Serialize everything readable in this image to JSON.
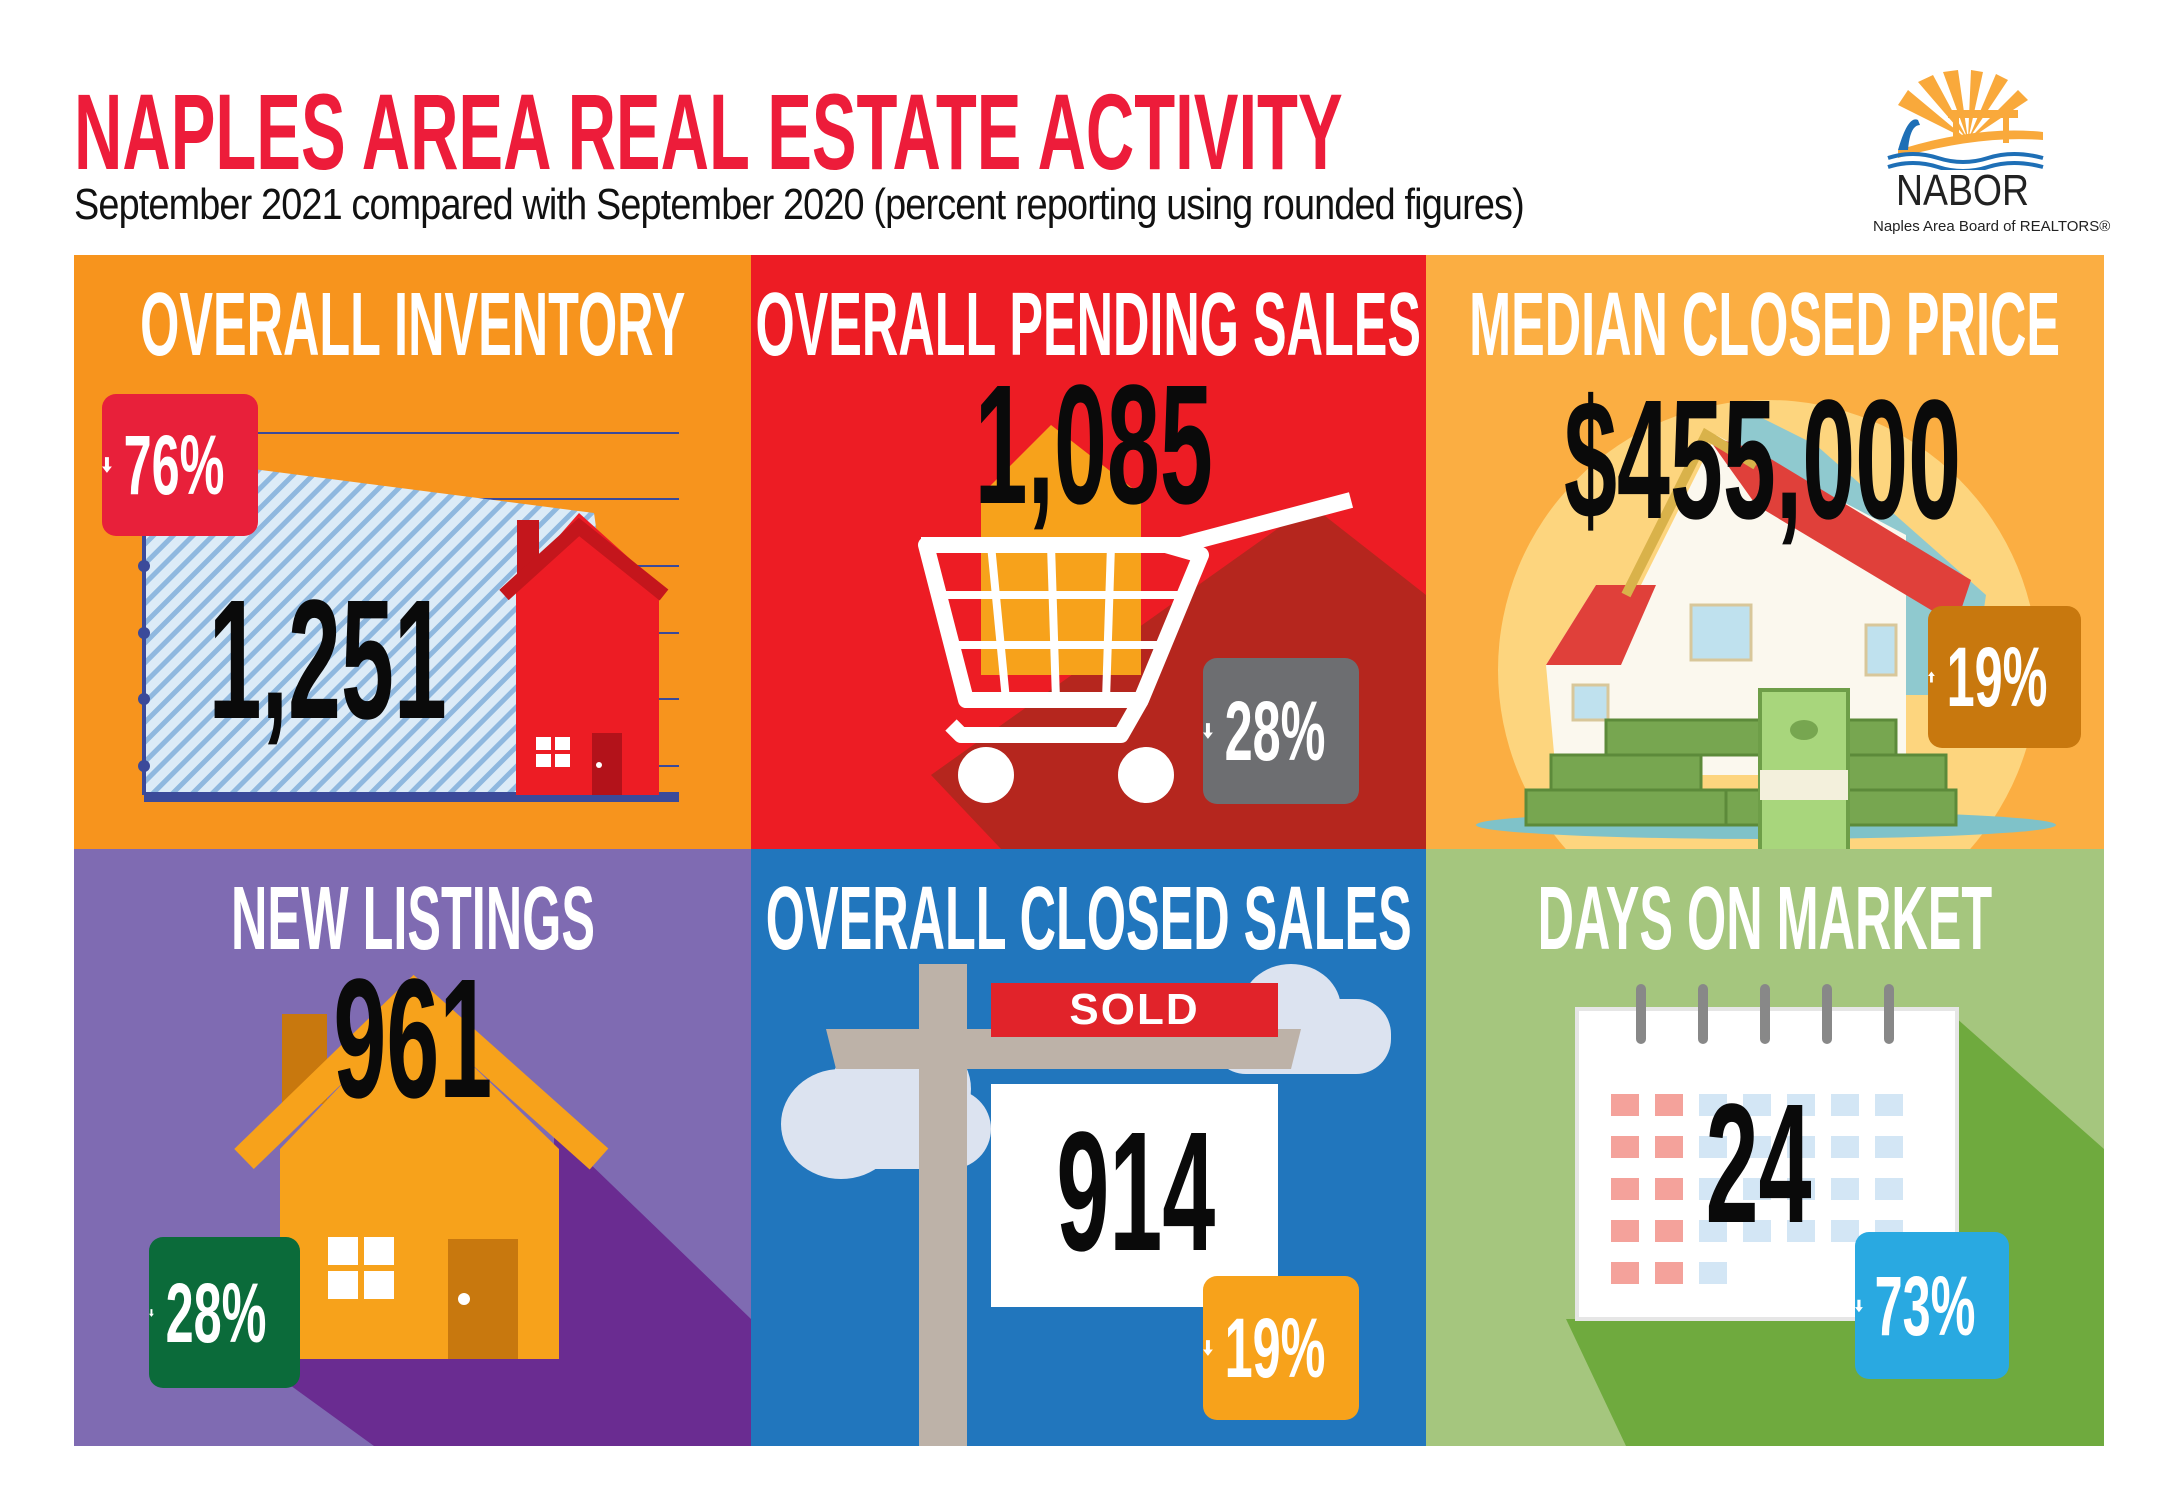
{
  "header": {
    "title": "NAPLES AREA REAL ESTATE ACTIVITY",
    "subtitle": "September 2021 compared with September 2020 (percent reporting using rounded figures)"
  },
  "logo": {
    "word": "NABOR",
    "tagline": "Naples Area Board of REALTORS®"
  },
  "colors": {
    "title_red": "#ED1C3A",
    "up": "arrow-up",
    "down": "arrow-down"
  },
  "panels": [
    {
      "title": "OVERALL INVENTORY",
      "value": "1,251",
      "change": "76%",
      "direction": "down",
      "icon": "house-chart-icon",
      "bg": "#F7941D",
      "badge_color": "#E8203A"
    },
    {
      "title": "OVERALL PENDING SALES",
      "value": "1,085",
      "change": "28%",
      "direction": "down",
      "icon": "shopping-cart-house-icon",
      "bg": "#ED1C24",
      "badge_color": "#6D6E71"
    },
    {
      "title": "MEDIAN CLOSED PRICE",
      "value": "$455,000",
      "change": "19%",
      "direction": "up",
      "icon": "house-money-icon",
      "bg": "#FBAE42",
      "badge_color": "#C8780E"
    },
    {
      "title": "NEW LISTINGS",
      "value": "961",
      "change": "28%",
      "direction": "down",
      "icon": "house-icon",
      "bg": "#7F6BB2",
      "badge_color": "#0B6B3A"
    },
    {
      "title": "OVERALL CLOSED SALES",
      "value": "914",
      "change": "19%",
      "direction": "down",
      "icon": "sold-sign-icon",
      "sign_label": "SOLD",
      "bg": "#2176BD",
      "badge_color": "#F7A21B"
    },
    {
      "title": "DAYS ON MARKET",
      "value": "24",
      "change": "73%",
      "direction": "down",
      "icon": "calendar-icon",
      "bg": "#A5C67E",
      "badge_color": "#29A9E1"
    }
  ]
}
